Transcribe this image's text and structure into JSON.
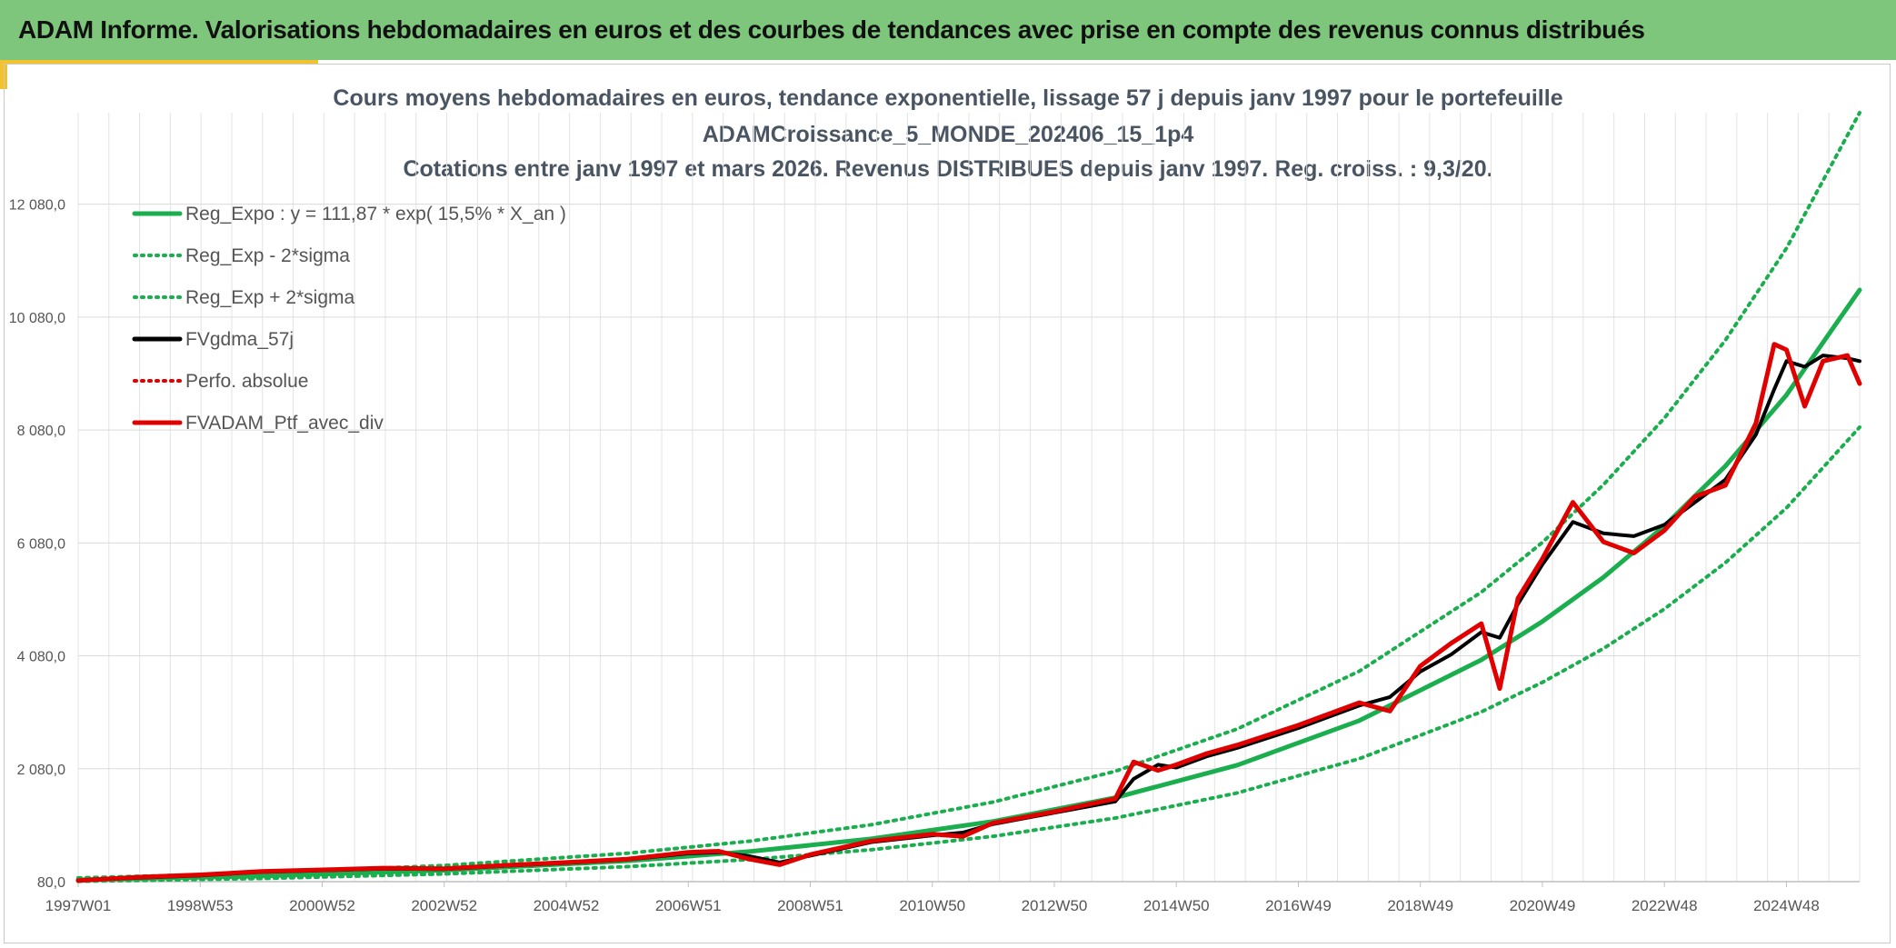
{
  "header": {
    "title": "ADAM Informe. Valorisations hebdomadaires en euros et des courbes de tendances avec prise en compte des revenus connus distribués"
  },
  "chart_data": {
    "type": "line",
    "title_lines": [
      "Cours moyens hebdomadaires en euros, tendance exponentielle, lissage 57 j depuis janv 1997 pour le portefeuille",
      "ADAMCroissance_5_MONDE_202406_15_1p4",
      "Cotations entre janv 1997 et mars 2026. Revenus DISTRIBUES depuis janv 1997. Reg. croiss. : 9,3/20."
    ],
    "x_ticks": [
      "1997W01",
      "1998W53",
      "2000W52",
      "2002W52",
      "2004W52",
      "2006W51",
      "2008W51",
      "2010W50",
      "2012W50",
      "2014W50",
      "2016W49",
      "2018W49",
      "2020W49",
      "2022W48",
      "2024W48"
    ],
    "y_ticks": [
      "80,0",
      "2 080,0",
      "4 080,0",
      "6 080,0",
      "8 080,0",
      "10 080,0",
      "12 080,0"
    ],
    "y_tick_values": [
      80,
      2080,
      4080,
      6080,
      8080,
      10080,
      12080
    ],
    "xlim": [
      1997.0,
      2026.2
    ],
    "ylim": [
      80,
      13700
    ],
    "grid": true,
    "legend_position": "top-left",
    "legend": [
      {
        "label": "Reg_Expo : y = 111,87 * exp( 15,5% *  X_an )",
        "color": "#1aae4e",
        "style": "solid"
      },
      {
        "label": "Reg_Exp - 2*sigma",
        "color": "#1aae4e",
        "style": "dotted"
      },
      {
        "label": "Reg_Exp + 2*sigma",
        "color": "#1aae4e",
        "style": "dotted"
      },
      {
        "label": "FVgdma_57j",
        "color": "#000000",
        "style": "solid"
      },
      {
        "label": "Perfo. absolue",
        "color": "#e00000",
        "style": "dotted"
      },
      {
        "label": "FVADAM_Ptf_avec_div",
        "color": "#e00000",
        "style": "solid"
      }
    ],
    "series": [
      {
        "name": "Reg_Expo : y = 111,87 * exp( 15,5% *  X_an )",
        "x": [
          1997.0,
          2000,
          2003,
          2006,
          2008,
          2010,
          2012,
          2014,
          2016,
          2018,
          2020,
          2021,
          2022,
          2023,
          2024,
          2025,
          2026.2
        ],
        "values": [
          112,
          178,
          282,
          448,
          613,
          838,
          1147,
          1568,
          2144,
          2932,
          4009,
          4690,
          5470,
          6380,
          7440,
          8700,
          10560
        ]
      },
      {
        "name": "Reg_Exp - 2*sigma",
        "x": [
          1997.0,
          2000,
          2003,
          2006,
          2008,
          2010,
          2012,
          2014,
          2016,
          2018,
          2020,
          2021,
          2022,
          2023,
          2024,
          2025,
          2026.2
        ],
        "values": [
          86,
          137,
          217,
          345,
          472,
          645,
          883,
          1207,
          1651,
          2258,
          3087,
          3610,
          4210,
          4910,
          5730,
          6700,
          8130
        ]
      },
      {
        "name": "Reg_Exp + 2*sigma",
        "x": [
          1997.0,
          2000,
          2003,
          2006,
          2008,
          2010,
          2012,
          2014,
          2016,
          2018,
          2020,
          2021,
          2022,
          2023,
          2024,
          2025,
          2026.2
        ],
        "values": [
          146,
          231,
          367,
          582,
          796,
          1088,
          1490,
          2036,
          2785,
          3808,
          5207,
          6090,
          7110,
          8290,
          9670,
          11300,
          13700
        ]
      },
      {
        "name": "FVgdma_57j",
        "x": [
          1997.0,
          1998.0,
          1999.0,
          2000.0,
          2001.0,
          2002.0,
          2003.0,
          2004.0,
          2005.0,
          2006.0,
          2007.0,
          2007.5,
          2008.0,
          2008.5,
          2009.0,
          2010.0,
          2011.0,
          2011.5,
          2012.0,
          2013.0,
          2014.0,
          2014.3,
          2014.7,
          2015.0,
          2015.5,
          2016.0,
          2017.0,
          2017.5,
          2018.0,
          2018.5,
          2019.0,
          2019.5,
          2020.0,
          2020.3,
          2020.6,
          2021.0,
          2021.5,
          2022.0,
          2022.5,
          2023.0,
          2023.5,
          2024.0,
          2024.5,
          2024.8,
          2025.0,
          2025.3,
          2025.6,
          2026.0,
          2026.2
        ],
        "values": [
          100,
          150,
          190,
          250,
          280,
          310,
          300,
          360,
          410,
          470,
          580,
          600,
          530,
          420,
          540,
          780,
          900,
          950,
          1100,
          1300,
          1500,
          1900,
          2150,
          2100,
          2300,
          2450,
          2800,
          3000,
          3200,
          3350,
          3800,
          4100,
          4500,
          4400,
          5000,
          5700,
          6450,
          6250,
          6200,
          6400,
          6800,
          7200,
          8000,
          8800,
          9300,
          9200,
          9400,
          9350,
          9300
        ]
      },
      {
        "name": "Perfo. absolue",
        "x": [
          1997.0,
          1998.0,
          1999.0,
          2000.0,
          2001.0,
          2002.0,
          2003.0,
          2004.0,
          2005.0,
          2006.0,
          2007.0,
          2007.5,
          2008.0,
          2008.5,
          2009.0,
          2010.0,
          2011.0,
          2011.5,
          2012.0,
          2013.0,
          2014.0,
          2014.3,
          2014.7,
          2015.0,
          2015.5,
          2016.0,
          2017.0,
          2017.5,
          2018.0,
          2018.5,
          2019.0,
          2019.5,
          2020.0,
          2020.3,
          2020.6,
          2021.0,
          2021.5,
          2022.0,
          2022.5,
          2023.0,
          2023.5,
          2024.0,
          2024.5,
          2024.8,
          2025.0,
          2025.3,
          2025.6,
          2026.0,
          2026.2
        ],
        "values": [
          100,
          160,
          200,
          260,
          290,
          320,
          310,
          370,
          420,
          480,
          600,
          620,
          480,
          380,
          560,
          800,
          920,
          880,
          1120,
          1320,
          1550,
          2200,
          2050,
          2150,
          2350,
          2500,
          2850,
          3050,
          3250,
          3100,
          3900,
          4300,
          4650,
          3500,
          5100,
          5800,
          6800,
          6100,
          5900,
          6300,
          6900,
          7100,
          8200,
          9600,
          9500,
          8500,
          9300,
          9400,
          8900
        ]
      },
      {
        "name": "FVADAM_Ptf_avec_div",
        "x": [
          1997.0,
          1998.0,
          1999.0,
          2000.0,
          2001.0,
          2002.0,
          2003.0,
          2004.0,
          2005.0,
          2006.0,
          2007.0,
          2007.5,
          2008.0,
          2008.5,
          2009.0,
          2010.0,
          2011.0,
          2011.5,
          2012.0,
          2013.0,
          2014.0,
          2014.3,
          2014.7,
          2015.0,
          2015.5,
          2016.0,
          2017.0,
          2017.5,
          2018.0,
          2018.5,
          2019.0,
          2019.5,
          2020.0,
          2020.3,
          2020.6,
          2021.0,
          2021.5,
          2022.0,
          2022.5,
          2023.0,
          2023.5,
          2024.0,
          2024.5,
          2024.8,
          2025.0,
          2025.3,
          2025.6,
          2026.0,
          2026.2
        ],
        "values": [
          100,
          160,
          200,
          260,
          290,
          320,
          310,
          370,
          420,
          480,
          600,
          620,
          480,
          380,
          560,
          800,
          920,
          880,
          1120,
          1320,
          1550,
          2200,
          2050,
          2150,
          2350,
          2500,
          2850,
          3050,
          3250,
          3100,
          3900,
          4300,
          4650,
          3500,
          5100,
          5800,
          6800,
          6100,
          5900,
          6300,
          6900,
          7100,
          8200,
          9600,
          9500,
          8500,
          9300,
          9400,
          8900
        ]
      }
    ]
  }
}
